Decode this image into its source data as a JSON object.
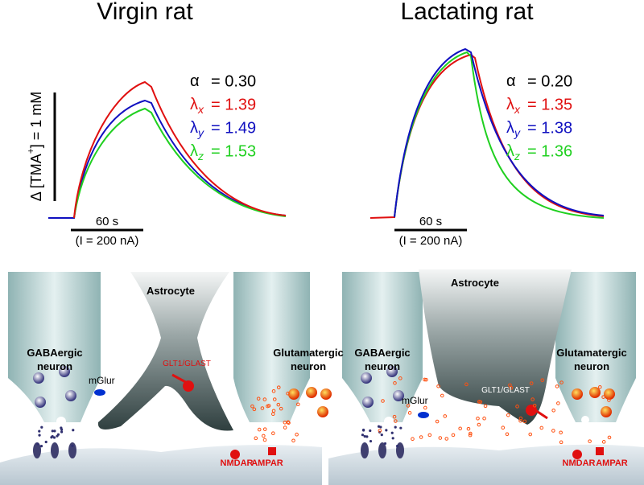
{
  "panels": [
    {
      "title": "Virgin rat",
      "params": [
        {
          "symbol": "α",
          "value": "= 0.30",
          "color": "#000000"
        },
        {
          "symbol": "λ",
          "sub": "x",
          "value": "= 1.39",
          "color": "#e01010"
        },
        {
          "symbol": "λ",
          "sub": "y",
          "value": "= 1.49",
          "color": "#1010c0"
        },
        {
          "symbol": "λ",
          "sub": "z",
          "value": "= 1.53",
          "color": "#20d020"
        }
      ],
      "time_scale": "60 s",
      "current": "(I = 200 nA)",
      "diagram": {
        "astrocyte": "Astrocyte",
        "gaba": [
          "GABAergic",
          "neuron"
        ],
        "glut": [
          "Glutamatergic",
          "neuron"
        ],
        "receptor": "mGlur",
        "transporter": "GLT1/GLAST",
        "nmdar": "NMDAR",
        "ampar": "AMPAR"
      }
    },
    {
      "title": "Lactating rat",
      "params": [
        {
          "symbol": "α",
          "value": "= 0.20",
          "color": "#000000"
        },
        {
          "symbol": "λ",
          "sub": "x",
          "value": "= 1.35",
          "color": "#e01010"
        },
        {
          "symbol": "λ",
          "sub": "y",
          "value": "= 1.38",
          "color": "#1010c0"
        },
        {
          "symbol": "λ",
          "sub": "z",
          "value": "= 1.36",
          "color": "#20d020"
        }
      ],
      "time_scale": "60 s",
      "current": "(I = 200 nA)",
      "diagram": {
        "astrocyte": "Astrocyte",
        "gaba": [
          "GABAergic",
          "neuron"
        ],
        "glut": [
          "Glutamatergic",
          "neuron"
        ],
        "receptor": "mGlur",
        "transporter": "GLT1/GLAST",
        "nmdar": "NMDAR",
        "ampar": "AMPAR"
      }
    }
  ],
  "concentration_scale": {
    "prefix": "Δ [TMA",
    "sup": "+",
    "suffix": "] = 1 mM"
  }
}
